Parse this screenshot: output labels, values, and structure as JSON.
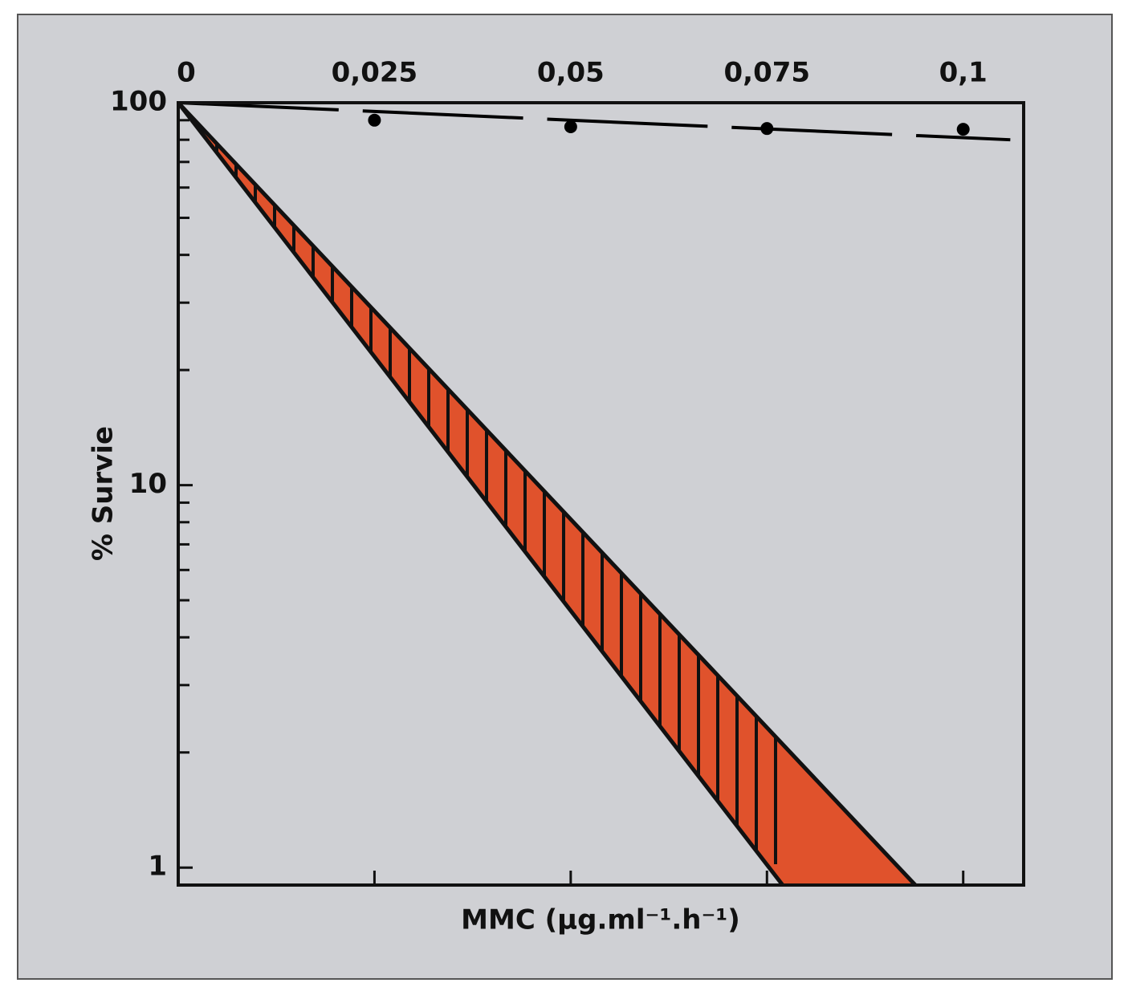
{
  "chart_data": {
    "type": "line",
    "x_label": "MMC  (µg.ml⁻¹.h⁻¹)",
    "y_label": "% Survie",
    "xlim": [
      0,
      0.1077
    ],
    "xticks": [
      0,
      {
        "value": 0.025,
        "label": "0,025"
      },
      {
        "value": 0.05,
        "label": "0,05"
      },
      {
        "value": 0.075,
        "label": "0,075"
      },
      {
        "value": 0.1,
        "label": "0,1"
      }
    ],
    "ylim": [
      0.9,
      100
    ],
    "log_y": true,
    "yticks": [
      1,
      10,
      100
    ],
    "yminor_ticks": [
      2,
      3,
      4,
      5,
      6,
      7,
      8,
      9,
      20,
      30,
      40,
      50,
      60,
      70,
      80,
      90
    ],
    "series": [
      {
        "name": "points",
        "color": "#000000",
        "x": [
          0.025,
          0.05,
          0.075,
          0.1
        ],
        "values": [
          90,
          86.5,
          85.6,
          85.2
        ]
      },
      {
        "name": "trend",
        "color": "#000000",
        "dashed": true,
        "x": [
          0,
          0.106
        ],
        "values": [
          100,
          80
        ]
      },
      {
        "name": "band-upper",
        "color": "#e0522c",
        "x": [
          0,
          0.0939
        ],
        "values": [
          100,
          0.9
        ]
      },
      {
        "name": "band-lower",
        "color": "#e0522c",
        "x": [
          0,
          0.077
        ],
        "values": [
          100,
          0.9
        ]
      }
    ]
  }
}
